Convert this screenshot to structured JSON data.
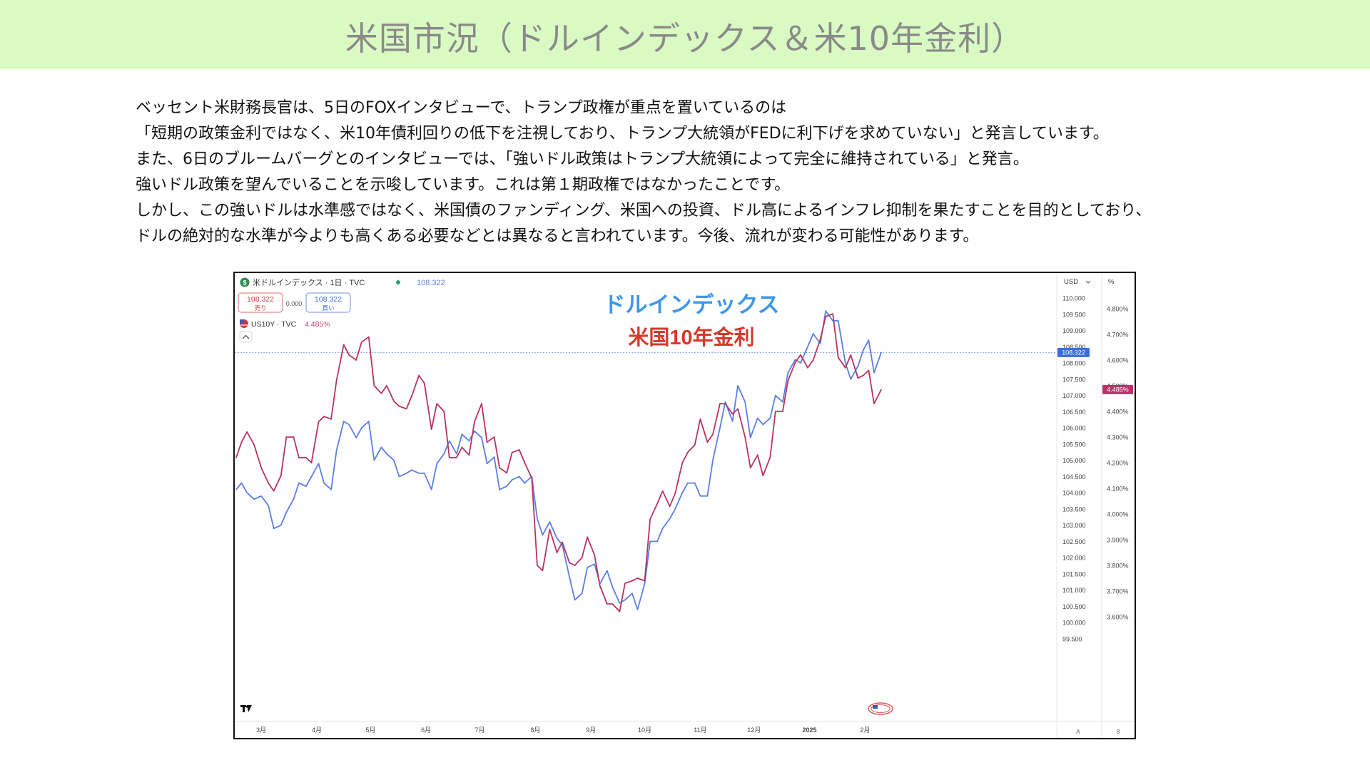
{
  "header": {
    "title": "米国市況（ドルインデックス＆米10年金利）"
  },
  "body": {
    "lines": [
      "ベッセント米財務長官は、5日のFOXインタビューで、トランプ政権が重点を置いているのは",
      "「短期の政策金利ではなく、米10年債利回りの低下を注視しており、トランプ大統領がFEDに利下げを求めていない」と発言しています。",
      "また、6日のブルームバーグとのインタビューでは、「強いドル政策はトランプ大統領によって完全に維持されている」と発言。",
      "強いドル政策を望んでいることを示唆しています。これは第１期政権ではなかったことです。",
      "しかし、この強いドルは水準感ではなく、米国債のファンディング、米国への投資、ドル高によるインフレ抑制を果たすことを目的としており、",
      "ドルの絶対的な水準が今よりも高くある必要などとは異なると言われています。今後、流れが変わる可能性があります。"
    ]
  },
  "tv": {
    "symbol_title": "米ドルインデックス · 1日 · TVC",
    "symbol_price": "108.322",
    "sell_price": "108.322",
    "sell_label": "売り",
    "spread": "0.000",
    "buy_price": "108.322",
    "buy_label": "買い",
    "compare_symbol": "US10Y · TVC",
    "compare_value": "4.485%",
    "currency_label": "USD",
    "percent_label": "%",
    "auto_label": "A",
    "scale_btn_label": "8",
    "dxy_last_label": "108.322",
    "yield_last_label": "4.485%",
    "icons": [
      "dollar-icon",
      "us-flag-icon",
      "collapse-chevron-icon",
      "tradingview-logo-icon",
      "currency-flags-icon"
    ]
  },
  "chart_data": {
    "type": "line",
    "title": "ドルインデックス",
    "subtitle": "米国10年金利",
    "x_range": [
      "2024-02-16",
      "2025-02-10"
    ],
    "x_ticks": [
      {
        "label": "3月",
        "date": "2024-03-01"
      },
      {
        "label": "4月",
        "date": "2024-04-01"
      },
      {
        "label": "5月",
        "date": "2024-05-01"
      },
      {
        "label": "6月",
        "date": "2024-06-01"
      },
      {
        "label": "7月",
        "date": "2024-07-01"
      },
      {
        "label": "8月",
        "date": "2024-08-01"
      },
      {
        "label": "9月",
        "date": "2024-09-01"
      },
      {
        "label": "10月",
        "date": "2024-10-01"
      },
      {
        "label": "11月",
        "date": "2024-11-01"
      },
      {
        "label": "12月",
        "date": "2024-12-01"
      },
      {
        "label": "2025",
        "date": "2025-01-01"
      },
      {
        "label": "2月",
        "date": "2025-02-01"
      }
    ],
    "y_left_axis": {
      "label": "USD",
      "ticks": [
        "110.000",
        "109.500",
        "109.000",
        "108.500",
        "108.000",
        "107.500",
        "107.000",
        "106.500",
        "106.000",
        "105.500",
        "105.000",
        "104.500",
        "104.000",
        "103.500",
        "103.000",
        "102.500",
        "102.000",
        "101.500",
        "101.000",
        "100.500",
        "100.000",
        "99.500"
      ],
      "ylim": [
        99.5,
        110.3
      ]
    },
    "y_right_axis": {
      "label": "%",
      "ticks": [
        "4.800%",
        "4.700%",
        "4.600%",
        "4.500%",
        "4.400%",
        "4.300%",
        "4.200%",
        "4.100%",
        "4.000%",
        "3.900%",
        "3.800%",
        "3.700%",
        "3.600%"
      ],
      "ylim": [
        3.53,
        4.86
      ]
    },
    "colors": {
      "dxy": "#5b7ee5",
      "yield": "#b8335f",
      "title": "#3d98e9",
      "subtitle": "#d53a2a",
      "dxy_badge": "#3b6de0",
      "yield_badge": "#b8336a"
    },
    "series": [
      {
        "name": "ドルインデックス",
        "axis": "left",
        "points": [
          [
            "2024-02-16",
            104.1
          ],
          [
            "2024-02-19",
            104.3
          ],
          [
            "2024-02-22",
            104.0
          ],
          [
            "2024-02-26",
            103.8
          ],
          [
            "2024-03-01",
            103.9
          ],
          [
            "2024-03-05",
            103.6
          ],
          [
            "2024-03-08",
            102.9
          ],
          [
            "2024-03-12",
            103.0
          ],
          [
            "2024-03-15",
            103.4
          ],
          [
            "2024-03-19",
            103.8
          ],
          [
            "2024-03-22",
            104.3
          ],
          [
            "2024-03-26",
            104.2
          ],
          [
            "2024-03-29",
            104.5
          ],
          [
            "2024-04-02",
            104.9
          ],
          [
            "2024-04-05",
            104.3
          ],
          [
            "2024-04-09",
            104.1
          ],
          [
            "2024-04-12",
            105.3
          ],
          [
            "2024-04-16",
            106.2
          ],
          [
            "2024-04-19",
            106.1
          ],
          [
            "2024-04-23",
            105.7
          ],
          [
            "2024-04-26",
            106.0
          ],
          [
            "2024-04-30",
            106.2
          ],
          [
            "2024-05-03",
            105.0
          ],
          [
            "2024-05-07",
            105.4
          ],
          [
            "2024-05-10",
            105.2
          ],
          [
            "2024-05-14",
            105.0
          ],
          [
            "2024-05-17",
            104.5
          ],
          [
            "2024-05-21",
            104.6
          ],
          [
            "2024-05-24",
            104.7
          ],
          [
            "2024-05-28",
            104.6
          ],
          [
            "2024-05-31",
            104.6
          ],
          [
            "2024-06-04",
            104.1
          ],
          [
            "2024-06-07",
            104.9
          ],
          [
            "2024-06-11",
            105.2
          ],
          [
            "2024-06-14",
            105.6
          ],
          [
            "2024-06-18",
            105.2
          ],
          [
            "2024-06-21",
            105.8
          ],
          [
            "2024-06-25",
            105.6
          ],
          [
            "2024-06-28",
            105.9
          ],
          [
            "2024-07-02",
            105.7
          ],
          [
            "2024-07-05",
            104.9
          ],
          [
            "2024-07-09",
            105.1
          ],
          [
            "2024-07-12",
            104.1
          ],
          [
            "2024-07-16",
            104.2
          ],
          [
            "2024-07-19",
            104.4
          ],
          [
            "2024-07-23",
            104.5
          ],
          [
            "2024-07-26",
            104.3
          ],
          [
            "2024-07-30",
            104.5
          ],
          [
            "2024-08-02",
            103.2
          ],
          [
            "2024-08-05",
            102.7
          ],
          [
            "2024-08-09",
            103.1
          ],
          [
            "2024-08-13",
            102.6
          ],
          [
            "2024-08-16",
            102.4
          ],
          [
            "2024-08-20",
            101.4
          ],
          [
            "2024-08-23",
            100.7
          ],
          [
            "2024-08-27",
            100.9
          ],
          [
            "2024-08-30",
            101.7
          ],
          [
            "2024-09-03",
            101.8
          ],
          [
            "2024-09-06",
            101.2
          ],
          [
            "2024-09-10",
            101.6
          ],
          [
            "2024-09-13",
            101.1
          ],
          [
            "2024-09-17",
            100.6
          ],
          [
            "2024-09-20",
            100.7
          ],
          [
            "2024-09-24",
            100.9
          ],
          [
            "2024-09-27",
            100.4
          ],
          [
            "2024-10-01",
            101.2
          ],
          [
            "2024-10-04",
            102.5
          ],
          [
            "2024-10-08",
            102.5
          ],
          [
            "2024-10-11",
            102.9
          ],
          [
            "2024-10-15",
            103.2
          ],
          [
            "2024-10-18",
            103.5
          ],
          [
            "2024-10-22",
            104.0
          ],
          [
            "2024-10-25",
            104.3
          ],
          [
            "2024-10-29",
            104.3
          ],
          [
            "2024-11-01",
            103.9
          ],
          [
            "2024-11-05",
            103.9
          ],
          [
            "2024-11-08",
            105.0
          ],
          [
            "2024-11-12",
            106.0
          ],
          [
            "2024-11-15",
            106.8
          ],
          [
            "2024-11-19",
            106.2
          ],
          [
            "2024-11-22",
            107.3
          ],
          [
            "2024-11-26",
            106.8
          ],
          [
            "2024-11-29",
            105.7
          ],
          [
            "2024-12-03",
            106.3
          ],
          [
            "2024-12-06",
            106.1
          ],
          [
            "2024-12-10",
            106.3
          ],
          [
            "2024-12-13",
            107.0
          ],
          [
            "2024-12-17",
            106.8
          ],
          [
            "2024-12-20",
            107.7
          ],
          [
            "2024-12-24",
            108.1
          ],
          [
            "2024-12-27",
            108.0
          ],
          [
            "2024-12-31",
            108.5
          ],
          [
            "2025-01-03",
            108.9
          ],
          [
            "2025-01-07",
            108.6
          ],
          [
            "2025-01-10",
            109.6
          ],
          [
            "2025-01-14",
            109.3
          ],
          [
            "2025-01-17",
            109.3
          ],
          [
            "2025-01-21",
            108.0
          ],
          [
            "2025-01-24",
            107.5
          ],
          [
            "2025-01-28",
            107.9
          ],
          [
            "2025-01-31",
            108.4
          ],
          [
            "2025-02-03",
            108.7
          ],
          [
            "2025-02-06",
            107.7
          ],
          [
            "2025-02-10",
            108.322
          ]
        ]
      },
      {
        "name": "米国10年金利",
        "axis": "right",
        "points": [
          [
            "2024-02-16",
            4.22
          ],
          [
            "2024-02-19",
            4.28
          ],
          [
            "2024-02-22",
            4.32
          ],
          [
            "2024-02-26",
            4.27
          ],
          [
            "2024-03-01",
            4.18
          ],
          [
            "2024-03-05",
            4.12
          ],
          [
            "2024-03-08",
            4.09
          ],
          [
            "2024-03-12",
            4.15
          ],
          [
            "2024-03-15",
            4.3
          ],
          [
            "2024-03-19",
            4.3
          ],
          [
            "2024-03-22",
            4.22
          ],
          [
            "2024-03-26",
            4.22
          ],
          [
            "2024-03-29",
            4.2
          ],
          [
            "2024-04-02",
            4.36
          ],
          [
            "2024-04-05",
            4.38
          ],
          [
            "2024-04-09",
            4.37
          ],
          [
            "2024-04-12",
            4.52
          ],
          [
            "2024-04-16",
            4.66
          ],
          [
            "2024-04-19",
            4.62
          ],
          [
            "2024-04-23",
            4.6
          ],
          [
            "2024-04-26",
            4.67
          ],
          [
            "2024-04-30",
            4.69
          ],
          [
            "2024-05-03",
            4.5
          ],
          [
            "2024-05-07",
            4.47
          ],
          [
            "2024-05-10",
            4.5
          ],
          [
            "2024-05-14",
            4.44
          ],
          [
            "2024-05-17",
            4.42
          ],
          [
            "2024-05-21",
            4.41
          ],
          [
            "2024-05-24",
            4.46
          ],
          [
            "2024-05-28",
            4.54
          ],
          [
            "2024-05-31",
            4.51
          ],
          [
            "2024-06-04",
            4.33
          ],
          [
            "2024-06-07",
            4.43
          ],
          [
            "2024-06-11",
            4.4
          ],
          [
            "2024-06-14",
            4.22
          ],
          [
            "2024-06-18",
            4.22
          ],
          [
            "2024-06-21",
            4.26
          ],
          [
            "2024-06-25",
            4.23
          ],
          [
            "2024-06-28",
            4.36
          ],
          [
            "2024-07-02",
            4.43
          ],
          [
            "2024-07-05",
            4.28
          ],
          [
            "2024-07-09",
            4.3
          ],
          [
            "2024-07-12",
            4.18
          ],
          [
            "2024-07-16",
            4.16
          ],
          [
            "2024-07-19",
            4.24
          ],
          [
            "2024-07-23",
            4.25
          ],
          [
            "2024-07-26",
            4.2
          ],
          [
            "2024-07-30",
            4.14
          ],
          [
            "2024-08-02",
            3.8
          ],
          [
            "2024-08-05",
            3.78
          ],
          [
            "2024-08-09",
            3.94
          ],
          [
            "2024-08-13",
            3.85
          ],
          [
            "2024-08-16",
            3.89
          ],
          [
            "2024-08-20",
            3.81
          ],
          [
            "2024-08-23",
            3.8
          ],
          [
            "2024-08-27",
            3.83
          ],
          [
            "2024-08-30",
            3.91
          ],
          [
            "2024-09-03",
            3.84
          ],
          [
            "2024-09-06",
            3.72
          ],
          [
            "2024-09-10",
            3.65
          ],
          [
            "2024-09-13",
            3.65
          ],
          [
            "2024-09-17",
            3.62
          ],
          [
            "2024-09-20",
            3.73
          ],
          [
            "2024-09-24",
            3.74
          ],
          [
            "2024-09-27",
            3.75
          ],
          [
            "2024-10-01",
            3.74
          ],
          [
            "2024-10-04",
            3.98
          ],
          [
            "2024-10-08",
            4.04
          ],
          [
            "2024-10-11",
            4.09
          ],
          [
            "2024-10-15",
            4.03
          ],
          [
            "2024-10-18",
            4.08
          ],
          [
            "2024-10-22",
            4.2
          ],
          [
            "2024-10-25",
            4.24
          ],
          [
            "2024-10-29",
            4.27
          ],
          [
            "2024-11-01",
            4.37
          ],
          [
            "2024-11-05",
            4.28
          ],
          [
            "2024-11-08",
            4.31
          ],
          [
            "2024-11-12",
            4.43
          ],
          [
            "2024-11-15",
            4.43
          ],
          [
            "2024-11-19",
            4.39
          ],
          [
            "2024-11-22",
            4.41
          ],
          [
            "2024-11-26",
            4.3
          ],
          [
            "2024-11-29",
            4.18
          ],
          [
            "2024-12-03",
            4.23
          ],
          [
            "2024-12-06",
            4.15
          ],
          [
            "2024-12-10",
            4.22
          ],
          [
            "2024-12-13",
            4.4
          ],
          [
            "2024-12-17",
            4.4
          ],
          [
            "2024-12-20",
            4.52
          ],
          [
            "2024-12-24",
            4.59
          ],
          [
            "2024-12-27",
            4.62
          ],
          [
            "2024-12-31",
            4.57
          ],
          [
            "2025-01-03",
            4.6
          ],
          [
            "2025-01-07",
            4.68
          ],
          [
            "2025-01-10",
            4.77
          ],
          [
            "2025-01-14",
            4.78
          ],
          [
            "2025-01-17",
            4.61
          ],
          [
            "2025-01-21",
            4.57
          ],
          [
            "2025-01-24",
            4.62
          ],
          [
            "2025-01-28",
            4.53
          ],
          [
            "2025-01-31",
            4.54
          ],
          [
            "2025-02-03",
            4.56
          ],
          [
            "2025-02-06",
            4.43
          ],
          [
            "2025-02-10",
            4.485
          ]
        ]
      }
    ]
  }
}
